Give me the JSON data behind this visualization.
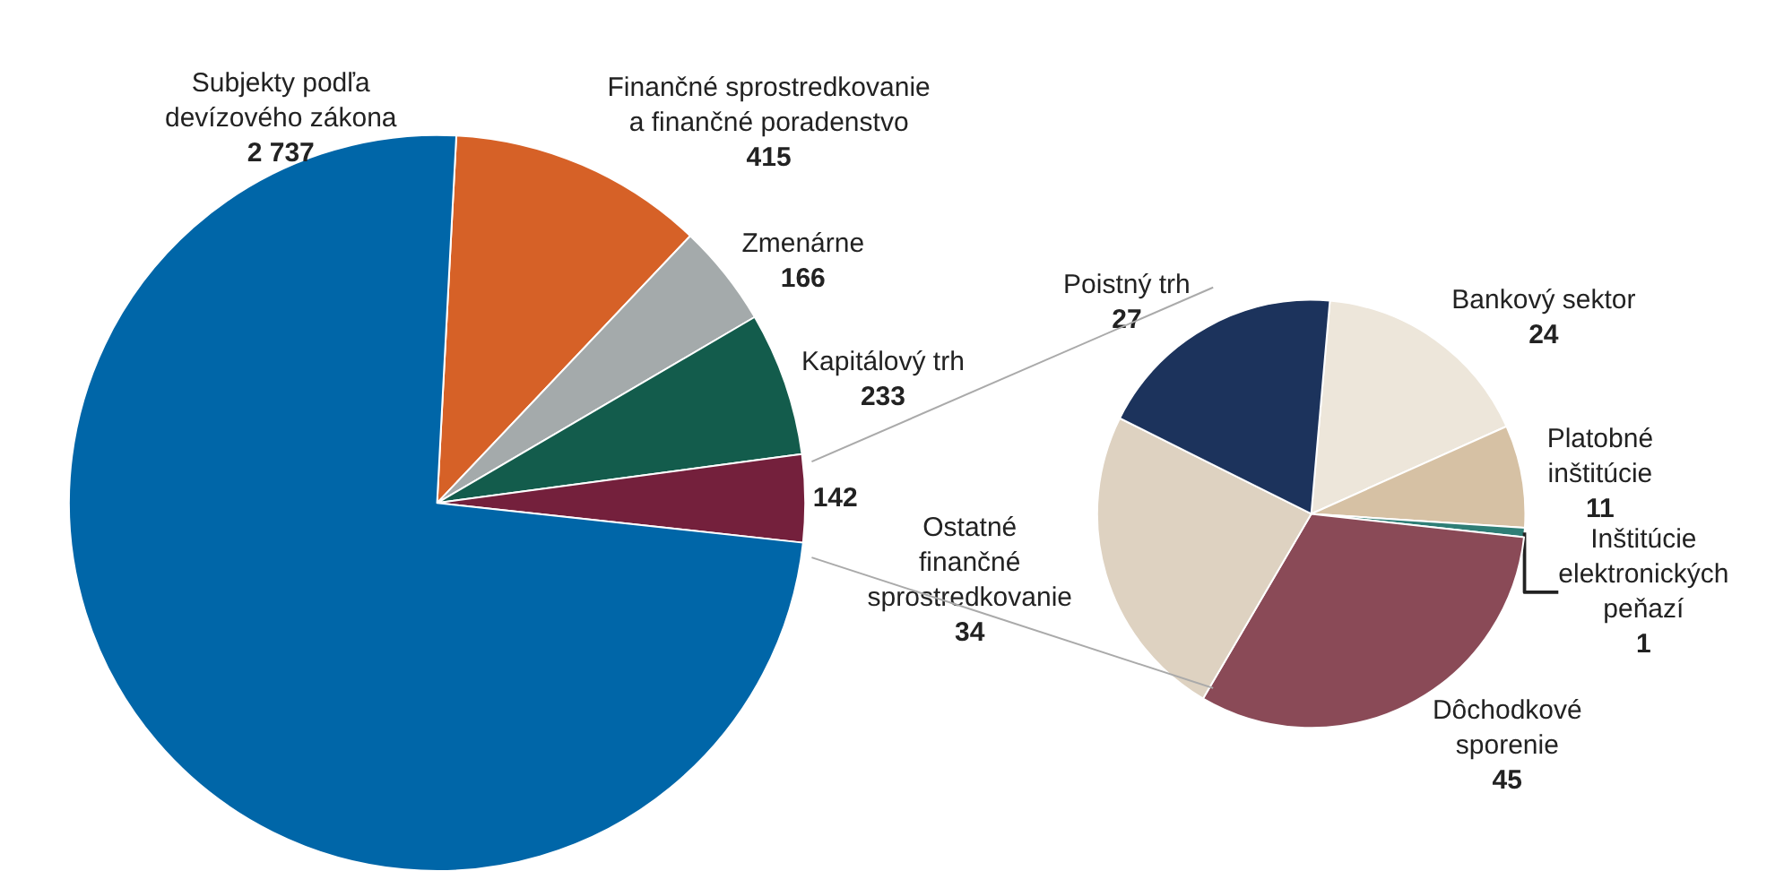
{
  "chart_data": [
    {
      "type": "pie",
      "categories": [
        "Finančné sprostredkovanie a finančné poradenstvo",
        "Zmenárne",
        "Kapitálový trh",
        null,
        "Subjekty podľa devízového zákona"
      ],
      "values": [
        415,
        166,
        233,
        142,
        2737
      ],
      "value_labels": [
        "415",
        "166",
        "233",
        "142",
        "2 737"
      ],
      "colors": [
        "#d66127",
        "#a4aaab",
        "#135c4c",
        "#74203c",
        "#0066a8"
      ]
    },
    {
      "type": "pie",
      "categories": [
        "Bankový sektor",
        "Platobné inštitúcie",
        "Inštitúcie elektronických peňazí",
        "Dôchodkové sporenie",
        "Ostatné finančné sprostredkovanie",
        "Poistný trh"
      ],
      "values": [
        24,
        11,
        1,
        45,
        34,
        27
      ],
      "value_labels": [
        "24",
        "11",
        "1",
        "45",
        "34",
        "27"
      ],
      "colors": [
        "#ede6da",
        "#d6c1a4",
        "#2e7e76",
        "#8a4a57",
        "#ded2c1",
        "#1c335c"
      ]
    }
  ]
}
